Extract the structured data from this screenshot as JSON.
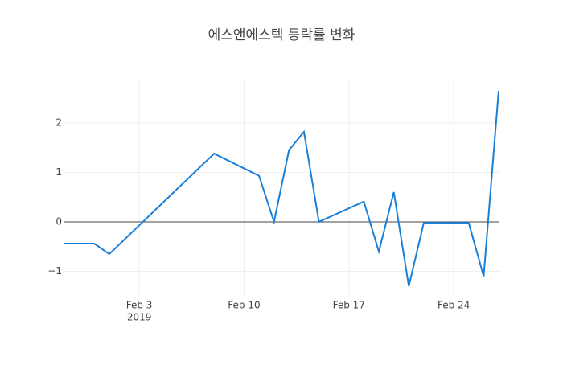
{
  "chart_data": {
    "type": "line",
    "title": "에스앤에스텍 등락률 변화",
    "x": [
      "2019-01-29",
      "2019-01-31",
      "2019-02-01",
      "2019-02-08",
      "2019-02-11",
      "2019-02-12",
      "2019-02-13",
      "2019-02-14",
      "2019-02-15",
      "2019-02-18",
      "2019-02-19",
      "2019-02-20",
      "2019-02-21",
      "2019-02-22",
      "2019-02-25",
      "2019-02-26",
      "2019-02-27"
    ],
    "series": [
      {
        "name": "등락률",
        "color": "#1a7fd9",
        "values": [
          -0.44,
          -0.44,
          -0.65,
          1.38,
          0.93,
          0,
          1.45,
          1.82,
          0,
          0.41,
          -0.6,
          0.6,
          -1.3,
          -0.02,
          -0.02,
          -1.1,
          2.65
        ]
      }
    ],
    "xlim": [
      "2019-01-29",
      "2019-02-27"
    ],
    "xticks": [
      {
        "value": "2019-02-03",
        "label": "Feb 3"
      },
      {
        "value": "2019-02-10",
        "label": "Feb 10"
      },
      {
        "value": "2019-02-17",
        "label": "Feb 17"
      },
      {
        "value": "2019-02-24",
        "label": "Feb 24"
      }
    ],
    "x_year_label": "2019",
    "ylim": [
      -1.48,
      2.86
    ],
    "yticks": [
      {
        "value": -1,
        "label": "−1"
      },
      0,
      1,
      2
    ],
    "grid": true,
    "zeroline": true
  }
}
